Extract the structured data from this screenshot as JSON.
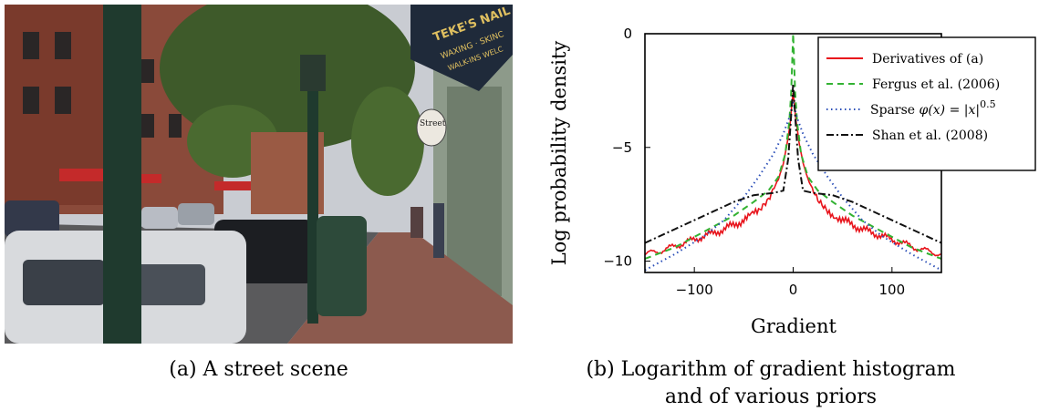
{
  "captions": {
    "a": "(a) A street scene",
    "b_line1": "(b) Logarithm of gradient histogram",
    "b_line2": "and of various priors"
  },
  "photo": {
    "description": "Photograph of a city street with parked cars, lamp posts, brick buildings and trees",
    "signs": [
      "TEKE'S NAIL",
      "WAXING · SKINC",
      "WALK-INS WELC",
      "Street"
    ]
  },
  "colors": {
    "derivatives": "#e8141c",
    "fergus": "#33b233",
    "sparse": "#2b4fb8",
    "shan": "#111111"
  },
  "chart_data": {
    "type": "line",
    "title": "",
    "xlabel": "Gradient",
    "ylabel": "Log probability density",
    "xlim": [
      -150,
      150
    ],
    "ylim": [
      -10.5,
      0
    ],
    "xticks": [
      -100,
      0,
      100
    ],
    "xtick_labels": [
      "−100",
      "0",
      "100"
    ],
    "yticks": [
      0,
      -5,
      -10
    ],
    "ytick_labels": [
      "0",
      "−5",
      "−10"
    ],
    "grid": false,
    "legend_position": "top-right",
    "series": [
      {
        "name": "Derivatives of (a)",
        "style": "solid",
        "x": [
          -150,
          -130,
          -110,
          -90,
          -70,
          -50,
          -35,
          -25,
          -15,
          -10,
          -6,
          -3,
          -1,
          0,
          1,
          3,
          6,
          10,
          15,
          25,
          35,
          50,
          70,
          90,
          110,
          130,
          150
        ],
        "y": [
          -9.7,
          -9.5,
          -9.2,
          -8.9,
          -8.6,
          -8.2,
          -7.8,
          -7.3,
          -6.4,
          -5.7,
          -4.8,
          -3.9,
          -3.0,
          -2.6,
          -3.0,
          -3.9,
          -4.8,
          -5.7,
          -6.4,
          -7.3,
          -7.8,
          -8.2,
          -8.6,
          -8.9,
          -9.2,
          -9.5,
          -9.7
        ]
      },
      {
        "name": "Fergus et al. (2006)",
        "style": "dashed",
        "x": [
          -150,
          -120,
          -90,
          -60,
          -40,
          -25,
          -15,
          -8,
          -4,
          -2,
          0,
          2,
          4,
          8,
          15,
          25,
          40,
          60,
          90,
          120,
          150
        ],
        "y": [
          -9.9,
          -9.4,
          -8.7,
          -8.0,
          -7.4,
          -6.9,
          -6.3,
          -5.3,
          -3.9,
          -2.6,
          0.0,
          -2.6,
          -3.9,
          -5.3,
          -6.3,
          -6.9,
          -7.4,
          -8.0,
          -8.7,
          -9.4,
          -9.9
        ]
      },
      {
        "name": "Sparse φ(x) = |x|^0.5",
        "style": "dotted",
        "x": [
          -150,
          -120,
          -90,
          -70,
          -50,
          -35,
          -20,
          -10,
          -4,
          -1,
          0,
          1,
          4,
          10,
          20,
          35,
          50,
          70,
          90,
          120,
          150
        ],
        "y": [
          -10.4,
          -9.7,
          -8.9,
          -8.2,
          -7.2,
          -6.3,
          -5.3,
          -4.4,
          -3.7,
          -3.2,
          -3.0,
          -3.2,
          -3.7,
          -4.4,
          -5.3,
          -6.3,
          -7.2,
          -8.2,
          -8.9,
          -9.7,
          -10.4
        ]
      },
      {
        "name": "Shan et al. (2008)",
        "style": "dashdot",
        "x": [
          -150,
          -120,
          -90,
          -60,
          -40,
          -20,
          -10,
          -5,
          -2,
          0,
          2,
          5,
          10,
          20,
          40,
          60,
          90,
          120,
          150
        ],
        "y": [
          -9.2,
          -8.6,
          -8.0,
          -7.4,
          -7.1,
          -7.0,
          -6.9,
          -5.5,
          -3.6,
          -2.2,
          -3.6,
          -5.5,
          -6.9,
          -7.0,
          -7.1,
          -7.4,
          -8.0,
          -8.6,
          -9.2
        ]
      }
    ],
    "legend_labels": {
      "derivatives": "Derivatives of (a)",
      "fergus": "Fergus et al. (2006)",
      "sparse_prefix": "Sparse ",
      "sparse_formula": "φ(x) = |x|",
      "sparse_exp": "0.5",
      "shan": "Shan et al. (2008)"
    }
  }
}
